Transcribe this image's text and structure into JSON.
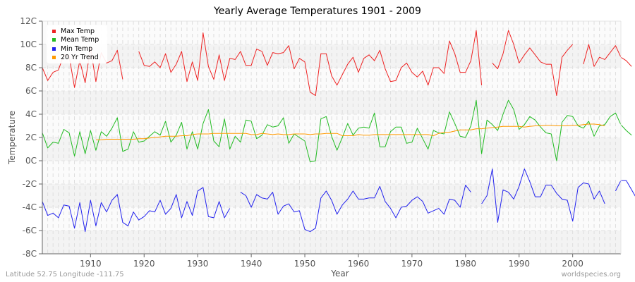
{
  "title": "Yearly Average Temperatures 1901 - 2009",
  "footer": {
    "location": "Latitude 52.75 Longitude -111.75",
    "source": "worldspecies.org"
  },
  "legend": [
    {
      "label": "Max Temp",
      "color": "#ee2222"
    },
    {
      "label": "Mean Temp",
      "color": "#22bb22"
    },
    {
      "label": "Min Temp",
      "color": "#2222ee"
    },
    {
      "label": "20 Yr Trend",
      "color": "#ff9900"
    }
  ],
  "chart_data": {
    "type": "line",
    "title": "Yearly Average Temperatures 1901 - 2009",
    "xlabel": "Year",
    "ylabel": "Temperature",
    "ylim": [
      -8,
      12
    ],
    "xlim": [
      1901,
      2009
    ],
    "yticks": [
      "-8C",
      "-6C",
      "-4C",
      "-2C",
      "0C",
      "2C",
      "4C",
      "6C",
      "8C",
      "10C",
      "12C"
    ],
    "xticks": [
      "1910",
      "1920",
      "1930",
      "1940",
      "1950",
      "1960",
      "1970",
      "1980",
      "1990",
      "2000"
    ],
    "grid": true,
    "legend_position": "top-left",
    "x_start": 1901,
    "series": [
      {
        "name": "Max Temp",
        "color": "#ee2222",
        "values": [
          8.0,
          6.9,
          7.6,
          7.8,
          9.1,
          9.0,
          6.3,
          8.6,
          6.7,
          9.7,
          6.8,
          9.3,
          8.4,
          8.6,
          9.5,
          7.0,
          null,
          null,
          9.4,
          8.2,
          8.1,
          8.5,
          8.0,
          9.2,
          7.6,
          8.3,
          9.4,
          6.8,
          8.5,
          6.9,
          11.0,
          8.1,
          7.0,
          9.1,
          6.9,
          8.8,
          8.7,
          9.4,
          8.2,
          8.2,
          9.6,
          9.4,
          8.2,
          9.3,
          9.2,
          9.3,
          9.9,
          7.9,
          8.8,
          8.5,
          5.9,
          5.6,
          9.2,
          9.2,
          7.3,
          6.5,
          7.4,
          8.3,
          8.9,
          7.6,
          8.8,
          9.1,
          8.6,
          9.5,
          7.9,
          6.8,
          6.9,
          8.0,
          8.4,
          7.6,
          7.2,
          7.7,
          6.5,
          8.0,
          8.0,
          7.5,
          10.3,
          9.2,
          7.6,
          7.6,
          8.6,
          11.2,
          6.5,
          null,
          8.4,
          7.9,
          9.2,
          11.2,
          10.0,
          8.4,
          9.1,
          9.7,
          9.1,
          8.5,
          8.3,
          8.3,
          5.6,
          8.9,
          9.5,
          10.0,
          null,
          8.3,
          10.0,
          8.1,
          8.9,
          8.7,
          9.3,
          9.9,
          8.9,
          8.6,
          8.1
        ]
      },
      {
        "name": "Mean Temp",
        "color": "#22bb22",
        "values": [
          2.4,
          1.1,
          1.6,
          1.5,
          2.7,
          2.4,
          0.4,
          2.5,
          0.6,
          2.6,
          0.9,
          2.5,
          2.1,
          2.8,
          3.7,
          0.8,
          1.0,
          2.5,
          1.6,
          1.7,
          2.1,
          2.5,
          2.2,
          3.4,
          1.6,
          2.2,
          3.3,
          1.0,
          2.5,
          1.0,
          3.2,
          4.4,
          1.7,
          1.2,
          3.6,
          1.0,
          2.1,
          1.6,
          3.5,
          3.4,
          1.9,
          2.2,
          3.1,
          2.9,
          3.0,
          3.7,
          1.5,
          2.3,
          2.0,
          1.7,
          -0.1,
          0.0,
          3.6,
          3.8,
          2.1,
          0.9,
          2.0,
          3.2,
          2.2,
          2.8,
          2.9,
          2.8,
          4.1,
          1.2,
          1.2,
          2.5,
          2.9,
          2.9,
          1.5,
          1.6,
          2.8,
          1.9,
          1.0,
          2.6,
          2.4,
          2.3,
          4.2,
          3.2,
          2.1,
          2.0,
          3.0,
          5.2,
          0.6,
          3.5,
          3.1,
          2.6,
          4.0,
          5.2,
          4.4,
          2.7,
          3.1,
          3.8,
          3.5,
          2.9,
          2.4,
          2.3,
          0.0,
          3.3,
          3.9,
          3.8,
          3.0,
          2.8,
          3.4,
          2.1,
          3.0,
          3.1,
          3.8,
          4.1,
          3.1,
          2.6,
          2.2
        ]
      },
      {
        "name": "Min Temp",
        "color": "#2222ee",
        "values": [
          -3.5,
          -4.7,
          -4.5,
          -4.9,
          -3.8,
          -3.9,
          -5.8,
          -3.6,
          -6.1,
          -3.4,
          -5.6,
          -3.6,
          -4.4,
          -3.4,
          -2.9,
          -5.3,
          -5.6,
          -4.4,
          -5.1,
          -4.8,
          -4.3,
          -4.4,
          -3.4,
          -4.6,
          -4.1,
          -2.9,
          -4.9,
          -3.5,
          -4.7,
          -2.6,
          -2.3,
          -4.8,
          -4.9,
          -3.5,
          -4.9,
          -4.1,
          null,
          -2.7,
          -3.0,
          -4.0,
          -2.9,
          -3.2,
          -3.3,
          -2.7,
          -4.6,
          -3.9,
          -3.7,
          -4.4,
          -4.3,
          -5.9,
          -6.1,
          -5.8,
          -3.2,
          -2.6,
          -3.4,
          -4.6,
          -3.8,
          -3.3,
          -2.6,
          -3.3,
          -3.3,
          -3.2,
          -3.2,
          -2.2,
          -3.5,
          -4.1,
          -4.9,
          -4.0,
          -3.9,
          -3.4,
          -3.1,
          -3.5,
          -4.5,
          -4.3,
          -4.1,
          -4.6,
          -3.3,
          -3.4,
          -4.0,
          -2.1,
          -2.7,
          null,
          -3.7,
          -3.0,
          -0.7,
          -5.3,
          -2.5,
          -2.7,
          -3.3,
          -2.2,
          -0.7,
          -1.8,
          -3.1,
          -3.1,
          -2.1,
          -2.1,
          -2.8,
          -3.3,
          -3.4,
          -5.2,
          -2.3,
          -1.9,
          -2.0,
          -3.3,
          -2.6,
          -3.7,
          null,
          -2.6,
          -1.7,
          -1.7,
          -2.5,
          -3.3,
          -3.7
        ]
      },
      {
        "name": "20 Yr Trend",
        "color": "#ff9900",
        "values": [
          null,
          null,
          null,
          null,
          null,
          null,
          null,
          null,
          null,
          null,
          1.8,
          1.8,
          1.85,
          1.85,
          1.85,
          1.85,
          1.85,
          1.85,
          1.9,
          1.9,
          1.95,
          2.0,
          2.05,
          2.1,
          2.1,
          2.1,
          2.15,
          2.15,
          2.25,
          2.3,
          2.3,
          2.3,
          2.35,
          2.35,
          2.35,
          2.35,
          2.35,
          2.35,
          2.35,
          2.25,
          2.25,
          2.35,
          2.3,
          2.25,
          2.3,
          2.25,
          2.25,
          2.3,
          2.3,
          2.3,
          2.25,
          2.3,
          2.3,
          2.35,
          2.35,
          2.35,
          2.15,
          2.15,
          2.15,
          2.25,
          2.2,
          2.2,
          2.25,
          2.25,
          2.25,
          2.25,
          2.25,
          2.25,
          2.25,
          2.25,
          2.25,
          2.25,
          2.25,
          2.15,
          2.35,
          2.45,
          2.45,
          2.55,
          2.65,
          2.65,
          2.65,
          2.75,
          2.75,
          2.8,
          2.85,
          2.9,
          2.95,
          2.95,
          2.95,
          2.95,
          2.9,
          2.95,
          3.0,
          3.0,
          3.05,
          3.05,
          3.0,
          3.0,
          3.0,
          3.05,
          3.05,
          3.1,
          3.15,
          3.15,
          3.1,
          3.0,
          null,
          null,
          null
        ]
      }
    ]
  }
}
